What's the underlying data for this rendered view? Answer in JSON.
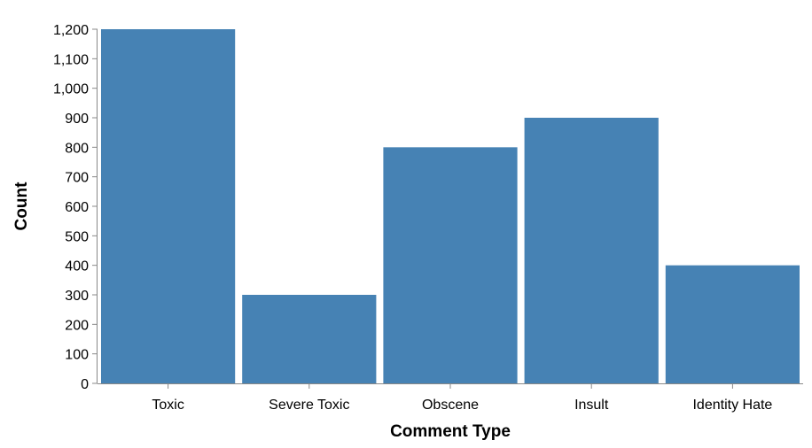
{
  "chart_data": {
    "type": "bar",
    "categories": [
      "Toxic",
      "Severe Toxic",
      "Obscene",
      "Insult",
      "Identity Hate"
    ],
    "values": [
      1200,
      300,
      800,
      900,
      400
    ],
    "xlabel": "Comment Type",
    "ylabel": "Count",
    "ylim": [
      0,
      1200
    ],
    "yticks": [
      0,
      100,
      200,
      300,
      400,
      500,
      600,
      700,
      800,
      900,
      1000,
      1100,
      1200
    ],
    "ytick_labels": [
      "0",
      "100",
      "200",
      "300",
      "400",
      "500",
      "600",
      "700",
      "800",
      "900",
      "1,000",
      "1,100",
      "1,200"
    ],
    "grid": false,
    "bar_color": "#4682b4",
    "axis_color": "#888888"
  }
}
